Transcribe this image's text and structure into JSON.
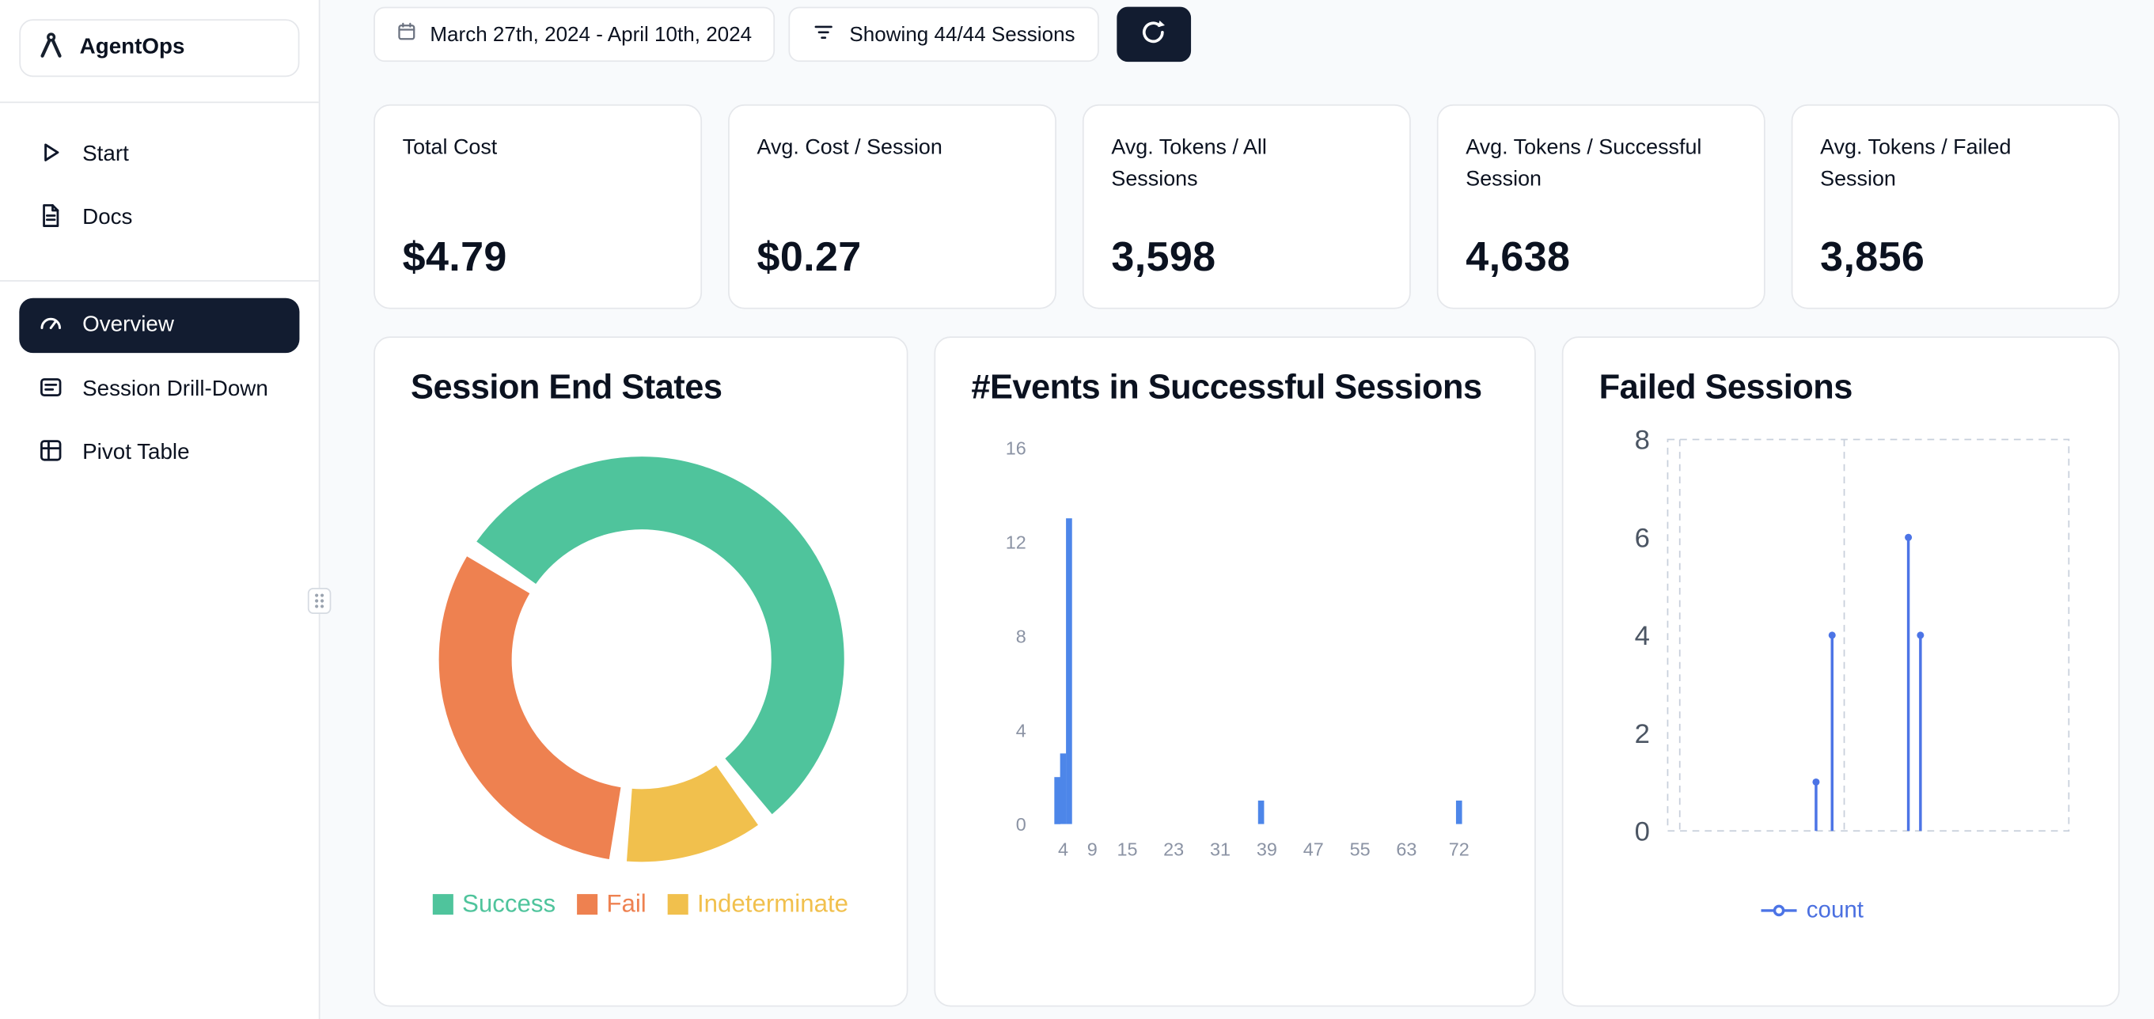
{
  "sidebar": {
    "logo_text": "AgentOps",
    "nav_top": [
      {
        "label": "Start"
      },
      {
        "label": "Docs"
      }
    ],
    "nav_main": [
      {
        "label": "Overview"
      },
      {
        "label": "Session Drill-Down"
      },
      {
        "label": "Pivot Table"
      }
    ]
  },
  "topbar": {
    "date_range": "March 27th, 2024 - April 10th, 2024",
    "filter_label": "Showing 44/44 Sessions"
  },
  "stats": [
    {
      "label": "Total Cost",
      "value": "$4.79"
    },
    {
      "label": "Avg. Cost / Session",
      "value": "$0.27"
    },
    {
      "label": "Avg. Tokens / All Sessions",
      "value": "3,598"
    },
    {
      "label": "Avg. Tokens / Successful Session",
      "value": "4,638"
    },
    {
      "label": "Avg. Tokens / Failed Session",
      "value": "3,856"
    }
  ],
  "chart_data": [
    {
      "type": "pie",
      "title": "Session End States",
      "donut": true,
      "start_angle": 303,
      "gap_deg": 5,
      "segments": [
        {
          "label": "Success",
          "pct": 54,
          "color": "#4fc49c"
        },
        {
          "label": "Indeterminate",
          "pct": 12,
          "color": "#f1c04d"
        },
        {
          "label": "Fail",
          "pct": 31.5,
          "color": "#ee8150"
        }
      ],
      "legend": [
        {
          "label": "Success",
          "color": "#4fc49c"
        },
        {
          "label": "Fail",
          "color": "#ee8150"
        },
        {
          "label": "Indeterminate",
          "color": "#f1c04d"
        }
      ]
    },
    {
      "type": "bar",
      "title": "#Events in Successful Sessions",
      "color": "#4d86e9",
      "xlim": [
        0,
        76
      ],
      "ylim": [
        0,
        16
      ],
      "x_ticks": [
        4,
        9,
        15,
        23,
        31,
        39,
        47,
        55,
        63,
        72
      ],
      "y_ticks": [
        0,
        4,
        8,
        12,
        16
      ],
      "bars": [
        {
          "x": 3,
          "count": 2
        },
        {
          "x": 4,
          "count": 3
        },
        {
          "x": 5,
          "count": 13
        },
        {
          "x": 38,
          "count": 1
        },
        {
          "x": 72,
          "count": 1
        }
      ]
    },
    {
      "type": "line",
      "title": "Failed Sessions",
      "color": "#4c74e6",
      "ylim": [
        0,
        8
      ],
      "y_ticks": [
        0,
        2,
        4,
        6,
        8
      ],
      "gridlines_x": [
        0.03,
        0.44
      ],
      "series": [
        {
          "name": "count",
          "points": [
            {
              "pos": 0.37,
              "value": 1
            },
            {
              "pos": 0.41,
              "value": 4
            },
            {
              "pos": 0.6,
              "value": 6
            },
            {
              "pos": 0.63,
              "value": 4
            }
          ]
        }
      ]
    }
  ]
}
